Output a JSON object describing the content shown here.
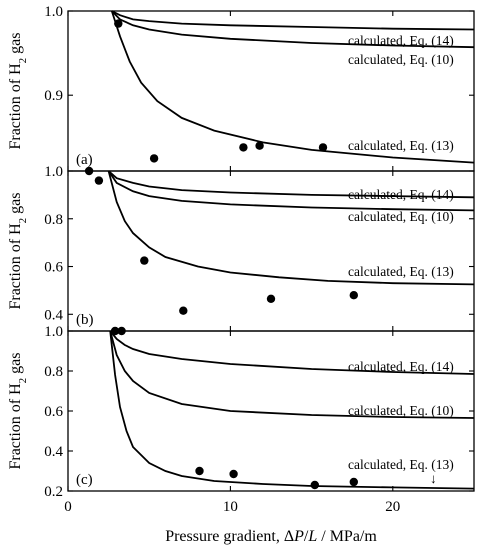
{
  "chart_data": {
    "type": "line",
    "xlabel": "Pressure gradient, ΔP/L / MPa/m",
    "xlim": [
      0,
      25
    ],
    "xticks": [
      0,
      10,
      20
    ],
    "ylabel": "Fraction of H2 gas",
    "panels": [
      {
        "label": "(a)",
        "ylim": [
          0.81,
          1.0
        ],
        "yticks": [
          0.9,
          1.0
        ],
        "series": [
          {
            "name": "calculated, Eq. (14)",
            "kind": "curve",
            "x": [
              2.7,
              3.2,
              4,
              5,
              7,
              10,
              15,
              20,
              25
            ],
            "y": [
              1.0,
              0.995,
              0.99,
              0.988,
              0.985,
              0.983,
              0.981,
              0.979,
              0.978
            ]
          },
          {
            "name": "calculated, Eq. (10)",
            "kind": "curve",
            "x": [
              2.7,
              3.2,
              4,
              5,
              7,
              10,
              15,
              20,
              25
            ],
            "y": [
              1.0,
              0.99,
              0.983,
              0.978,
              0.972,
              0.967,
              0.962,
              0.959,
              0.957
            ]
          },
          {
            "name": "calculated, Eq. (13)",
            "kind": "curve",
            "x": [
              2.7,
              3.2,
              3.8,
              4.5,
              5.5,
              7,
              9,
              12,
              15,
              20,
              25
            ],
            "y": [
              1.0,
              0.97,
              0.94,
              0.915,
              0.893,
              0.873,
              0.858,
              0.844,
              0.835,
              0.826,
              0.82
            ]
          },
          {
            "name": "",
            "kind": "points",
            "x": [
              3.1,
              5.3,
              10.8,
              11.8,
              15.7
            ],
            "y": [
              0.985,
              0.825,
              0.838,
              0.84,
              0.838
            ]
          }
        ]
      },
      {
        "label": "(b)",
        "ylim": [
          0.33,
          1.0
        ],
        "yticks": [
          0.4,
          0.6,
          0.8,
          1.0
        ],
        "series": [
          {
            "name": "calculated, Eq. (14)",
            "kind": "curve",
            "x": [
              2.5,
              3,
              4,
              5,
              7,
              10,
              15,
              20,
              25
            ],
            "y": [
              1.0,
              0.97,
              0.95,
              0.935,
              0.92,
              0.91,
              0.9,
              0.895,
              0.89
            ]
          },
          {
            "name": "calculated, Eq. (10)",
            "kind": "curve",
            "x": [
              2.5,
              3,
              4,
              5,
              7,
              10,
              15,
              20,
              25
            ],
            "y": [
              1.0,
              0.95,
              0.915,
              0.895,
              0.875,
              0.86,
              0.847,
              0.84,
              0.835
            ]
          },
          {
            "name": "calculated, Eq. (13)",
            "kind": "curve",
            "x": [
              2.5,
              3,
              3.5,
              4,
              5,
              6,
              8,
              10,
              13,
              16,
              20,
              25
            ],
            "y": [
              1.0,
              0.87,
              0.79,
              0.74,
              0.68,
              0.64,
              0.6,
              0.575,
              0.555,
              0.54,
              0.53,
              0.525
            ]
          },
          {
            "name": "",
            "kind": "points",
            "x": [
              1.3,
              1.9,
              4.7,
              7.1,
              12.5,
              17.6
            ],
            "y": [
              1.0,
              0.96,
              0.625,
              0.415,
              0.465,
              0.48
            ]
          }
        ]
      },
      {
        "label": "(c)",
        "ylim": [
          0.2,
          1.0
        ],
        "yticks": [
          0.2,
          0.4,
          0.6,
          0.8,
          1.0
        ],
        "series": [
          {
            "name": "calculated, Eq. (14)",
            "kind": "curve",
            "x": [
              2.6,
              3,
              3.5,
              4,
              5,
              7,
              10,
              15,
              20,
              25
            ],
            "y": [
              1.0,
              0.96,
              0.93,
              0.91,
              0.885,
              0.86,
              0.835,
              0.81,
              0.795,
              0.785
            ]
          },
          {
            "name": "calculated, Eq. (10)",
            "kind": "curve",
            "x": [
              2.6,
              3,
              3.5,
              4,
              5,
              7,
              10,
              15,
              20,
              25
            ],
            "y": [
              1.0,
              0.88,
              0.8,
              0.75,
              0.69,
              0.635,
              0.6,
              0.58,
              0.57,
              0.565
            ]
          },
          {
            "name": "calculated, Eq. (13)",
            "kind": "curve",
            "x": [
              2.6,
              2.9,
              3.2,
              3.6,
              4,
              5,
              6,
              7,
              9,
              12,
              15,
              20,
              25
            ],
            "y": [
              1.0,
              0.78,
              0.62,
              0.5,
              0.42,
              0.34,
              0.3,
              0.275,
              0.25,
              0.235,
              0.225,
              0.218,
              0.212
            ]
          },
          {
            "name": "",
            "kind": "points",
            "x": [
              2.9,
              3.3,
              8.1,
              10.2,
              15.2,
              17.6
            ],
            "y": [
              1.0,
              1.0,
              0.3,
              0.285,
              0.23,
              0.245
            ]
          }
        ]
      }
    ],
    "annotations": [
      {
        "panel": 2,
        "type": "arrow",
        "text": "↓",
        "x": 22.5,
        "y": 0.27
      }
    ]
  }
}
